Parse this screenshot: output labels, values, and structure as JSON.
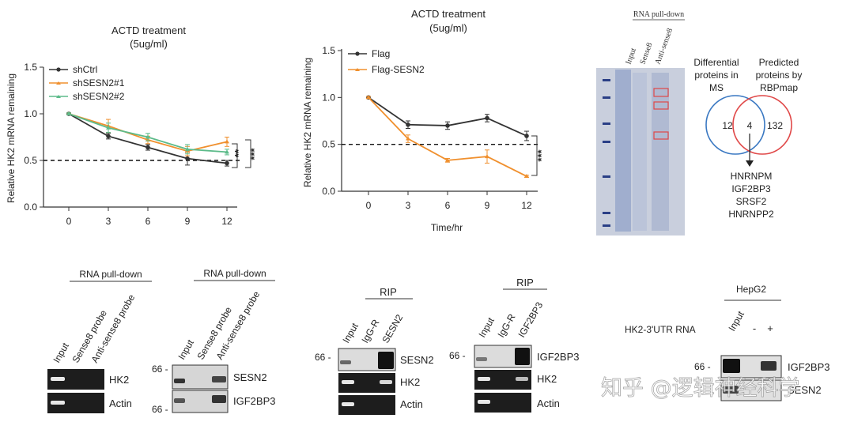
{
  "chart_data": [
    {
      "type": "line",
      "title": "ACTD treatment",
      "subtitle": "(5ug/ml)",
      "ylabel": "Relative HK2 mRNA remaining",
      "xlabel": "",
      "ylim": [
        0,
        1.5
      ],
      "yticks": [
        "0.0",
        "0.5",
        "1.0",
        "1.5"
      ],
      "x": [
        0,
        3,
        6,
        9,
        12
      ],
      "xticks": [
        "0",
        "3",
        "6",
        "9",
        "12"
      ],
      "reference_line": 0.5,
      "legend": "top-left",
      "significance": [
        "**",
        "***"
      ],
      "series": [
        {
          "name": "shCtrl",
          "color": "#333333",
          "values": [
            1.0,
            0.76,
            0.64,
            0.52,
            0.47
          ],
          "err": [
            0.01,
            0.03,
            0.03,
            0.07,
            0.03
          ]
        },
        {
          "name": "shSESN2#1",
          "color": "#f0902e",
          "values": [
            1.0,
            0.87,
            0.72,
            0.6,
            0.7
          ],
          "err": [
            0.01,
            0.07,
            0.04,
            0.05,
            0.05
          ]
        },
        {
          "name": "shSESN2#2",
          "color": "#5dbb8a",
          "values": [
            1.0,
            0.85,
            0.75,
            0.62,
            0.59
          ],
          "err": [
            0.01,
            0.05,
            0.04,
            0.05,
            0.03
          ]
        }
      ]
    },
    {
      "type": "line",
      "title": "ACTD treatment",
      "subtitle": "(5ug/ml)",
      "ylabel": "Relative HK2 mRNA remaining",
      "xlabel": "Time/hr",
      "ylim": [
        0,
        1.5
      ],
      "yticks": [
        "0.0",
        "0.5",
        "1.0",
        "1.5"
      ],
      "x": [
        0,
        3,
        6,
        9,
        12
      ],
      "xticks": [
        "0",
        "3",
        "6",
        "9",
        "12"
      ],
      "reference_line": 0.5,
      "legend": "top-left",
      "significance": [
        "***"
      ],
      "series": [
        {
          "name": "Flag",
          "color": "#333333",
          "values": [
            1.0,
            0.71,
            0.7,
            0.78,
            0.59
          ],
          "err": [
            0.01,
            0.04,
            0.04,
            0.04,
            0.05
          ]
        },
        {
          "name": "Flag-SESN2",
          "color": "#f0902e",
          "values": [
            1.0,
            0.56,
            0.33,
            0.37,
            0.16
          ],
          "err": [
            0.01,
            0.04,
            0.02,
            0.07,
            0.01
          ]
        }
      ]
    }
  ],
  "gel": {
    "title": "RNA pull-down",
    "lanes": [
      "Input",
      "Sense8",
      "Anti-sense8"
    ]
  },
  "venn": {
    "left_label": "Differential proteins in MS",
    "right_label": "Predicted proteins by RBPmap",
    "left_only": "12",
    "overlap": "4",
    "right_only": "132",
    "left_color": "#3a78c2",
    "right_color": "#e04848",
    "overlap_proteins": [
      "HNRNPM",
      "IGF2BP3",
      "SRSF2",
      "HNRNPP2"
    ]
  },
  "blots": {
    "b1": {
      "header": "RNA pull-down",
      "lanes": [
        "Input",
        "Sense8 probe",
        "Anti-sense8 probe"
      ],
      "rows": [
        "HK2",
        "Actin"
      ]
    },
    "b2": {
      "header": "RNA pull-down",
      "lanes": [
        "Input",
        "Sense8 probe",
        "Anti-sense8 probe"
      ],
      "rows": [
        "SESN2",
        "IGF2BP3"
      ],
      "markers": [
        "66 -",
        "66 -"
      ]
    },
    "b3": {
      "header": "RIP",
      "lanes": [
        "Input",
        "IgG-R",
        "SESN2"
      ],
      "rows": [
        "SESN2",
        "HK2",
        "Actin"
      ],
      "marker": "66 -"
    },
    "b4": {
      "header": "RIP",
      "lanes": [
        "Input",
        "IgG-R",
        "IGF2BP3"
      ],
      "rows": [
        "IGF2BP3",
        "HK2",
        "Actin"
      ],
      "marker": "66 -"
    },
    "b5": {
      "header": "HepG2",
      "row_label": "HK2-3'UTR RNA",
      "lanes": [
        "Input",
        "-",
        "+"
      ],
      "rows": [
        "IGF2BP3",
        "SESN2"
      ],
      "marker": "66 -"
    }
  },
  "watermark": "知乎 @逻辑神经科学"
}
